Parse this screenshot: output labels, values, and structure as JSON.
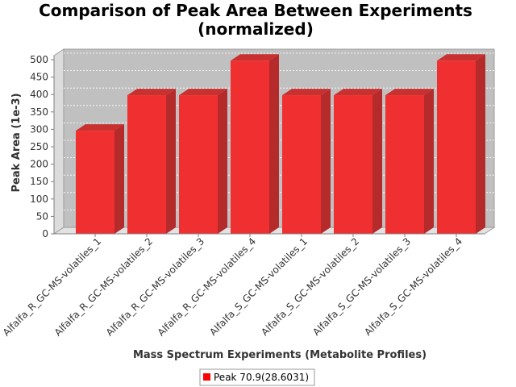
{
  "chart_data": {
    "type": "bar",
    "title_line1": "Comparison of Peak Area Between Experiments",
    "title_line2": "(normalized)",
    "xlabel": "Mass Spectrum Experiments (Metabolite Profiles)",
    "ylabel": "Peak Area (1e-3)",
    "ylim": [
      0,
      500
    ],
    "yticks": [
      "0",
      "50",
      "100",
      "150",
      "200",
      "250",
      "300",
      "350",
      "400",
      "450",
      "500"
    ],
    "grid": true,
    "legend_position": "bottom",
    "categories": [
      "Alfalfa_R_GC-MS-volatiles_1",
      "Alfalfa_R_GC-MS-volatiles_2",
      "Alfalfa_R_GC-MS-volatiles_3",
      "Alfalfa_R_GC-MS-volatiles_4",
      "Alfalfa_S_GC-MS-volatiles_1",
      "Alfalfa_S_GC-MS-volatiles_2",
      "Alfalfa_S_GC-MS-volatiles_3",
      "Alfalfa_S_GC-MS-volatiles_4"
    ],
    "series": [
      {
        "name": "Peak 70.9(28.6031)",
        "color": "#ff0000",
        "values": [
          296,
          398,
          398,
          497,
          398,
          398,
          398,
          497
        ]
      }
    ]
  }
}
